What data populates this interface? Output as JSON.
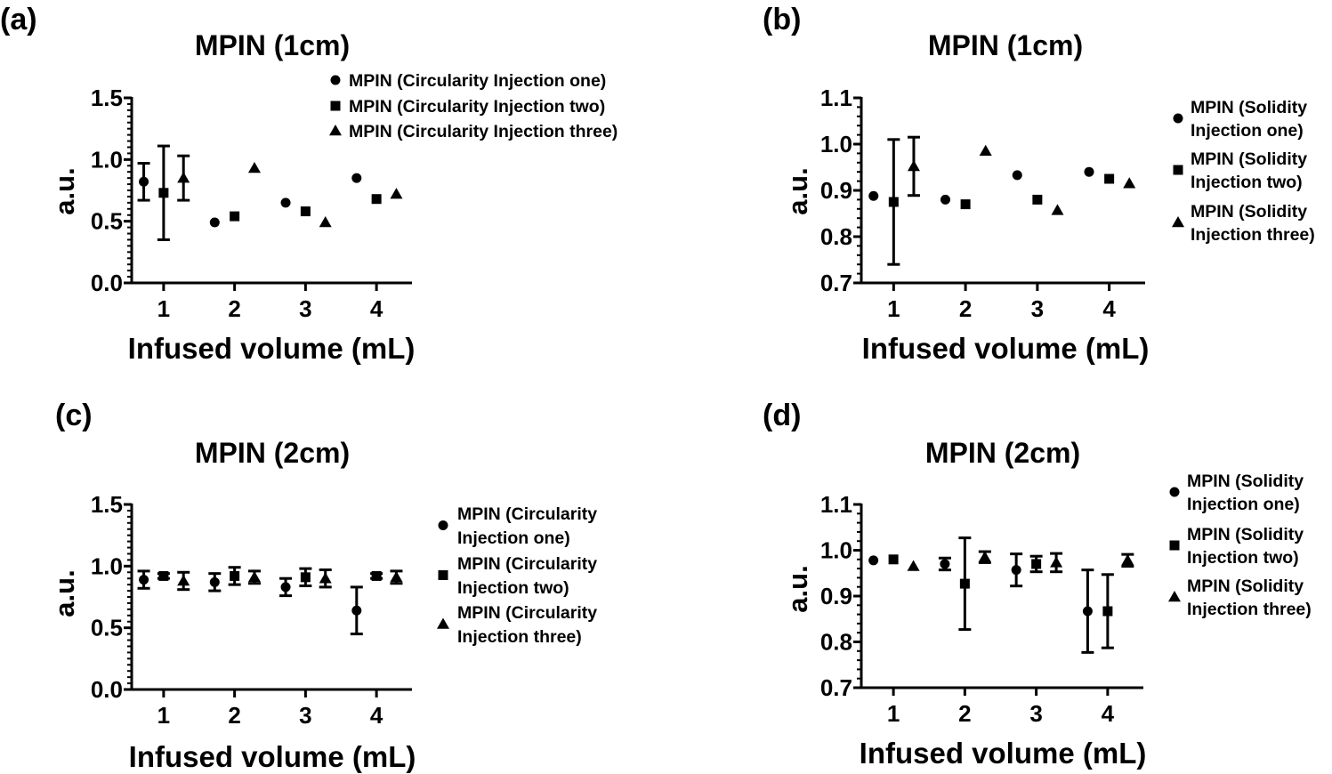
{
  "chart_data": [
    {
      "panel": "(a)",
      "type": "scatter",
      "title": "MPIN (1cm)",
      "xlabel": "Infused volume (mL)",
      "ylabel": "a.u.",
      "ylim": [
        0.0,
        1.5
      ],
      "yticks": [
        "0.0",
        "0.5",
        "1.0",
        "1.5"
      ],
      "xlim": [
        0.55,
        4.5
      ],
      "xticks": [
        1,
        2,
        3,
        4
      ],
      "grid": false,
      "legend_position": "top-right",
      "legend_lines": [
        [
          "MPIN (Circularity Injection one)"
        ],
        [
          "MPIN (Circularity Injection two)"
        ],
        [
          "MPIN (Circularity Injection three)"
        ]
      ],
      "series": [
        {
          "name": "MPIN (Circularity Injection one)",
          "marker": "circle",
          "points": [
            {
              "x": 0.72,
              "y": 0.82,
              "err": 0.15
            },
            {
              "x": 1.72,
              "y": 0.49
            },
            {
              "x": 2.72,
              "y": 0.65
            },
            {
              "x": 3.72,
              "y": 0.85
            }
          ]
        },
        {
          "name": "MPIN (Circularity Injection two)",
          "marker": "square",
          "points": [
            {
              "x": 1.0,
              "y": 0.73,
              "err": 0.38
            },
            {
              "x": 2.0,
              "y": 0.54
            },
            {
              "x": 3.0,
              "y": 0.58
            },
            {
              "x": 4.0,
              "y": 0.68
            }
          ]
        },
        {
          "name": "MPIN (Circularity Injection three)",
          "marker": "triangle",
          "points": [
            {
              "x": 1.28,
              "y": 0.85,
              "err": 0.18
            },
            {
              "x": 2.28,
              "y": 0.93
            },
            {
              "x": 3.28,
              "y": 0.49
            },
            {
              "x": 4.28,
              "y": 0.72
            }
          ]
        }
      ]
    },
    {
      "panel": "(b)",
      "type": "scatter",
      "title": "MPIN (1cm)",
      "xlabel": "Infused volume (mL)",
      "ylabel": "a.u.",
      "ylim": [
        0.7,
        1.1
      ],
      "yticks": [
        "0.7",
        "0.8",
        "0.9",
        "1.0",
        "1.1"
      ],
      "xlim": [
        0.55,
        4.5
      ],
      "xticks": [
        1,
        2,
        3,
        4
      ],
      "grid": false,
      "legend_position": "right",
      "legend_lines": [
        [
          "MPIN (Solidity",
          "Injection one)"
        ],
        [
          "MPIN (Solidity",
          "Injection two)"
        ],
        [
          "MPIN (Solidity",
          "Injection three)"
        ]
      ],
      "series": [
        {
          "name": "MPIN (Solidity Injection one)",
          "marker": "circle",
          "points": [
            {
              "x": 0.72,
              "y": 0.888
            },
            {
              "x": 1.72,
              "y": 0.88
            },
            {
              "x": 2.72,
              "y": 0.933
            },
            {
              "x": 3.72,
              "y": 0.94
            }
          ]
        },
        {
          "name": "MPIN (Solidity Injection two)",
          "marker": "square",
          "points": [
            {
              "x": 1.0,
              "y": 0.875,
              "err": 0.135
            },
            {
              "x": 2.0,
              "y": 0.87
            },
            {
              "x": 3.0,
              "y": 0.88
            },
            {
              "x": 4.0,
              "y": 0.925
            }
          ]
        },
        {
          "name": "MPIN (Solidity Injection three)",
          "marker": "triangle",
          "points": [
            {
              "x": 1.28,
              "y": 0.952,
              "err": 0.063
            },
            {
              "x": 2.28,
              "y": 0.985
            },
            {
              "x": 3.28,
              "y": 0.857
            },
            {
              "x": 4.28,
              "y": 0.915
            }
          ]
        }
      ]
    },
    {
      "panel": "(c)",
      "type": "scatter",
      "title": "MPIN (2cm)",
      "xlabel": "Infused volume (mL)",
      "ylabel": "a.u.",
      "ylim": [
        0.0,
        1.5
      ],
      "yticks": [
        "0.0",
        "0.5",
        "1.0",
        "1.5"
      ],
      "xlim": [
        0.55,
        4.5
      ],
      "xticks": [
        1,
        2,
        3,
        4
      ],
      "grid": false,
      "legend_position": "right",
      "legend_lines": [
        [
          "MPIN (Circularity",
          "Injection one)"
        ],
        [
          "MPIN (Circularity",
          "Injection two)"
        ],
        [
          "MPIN (Circularity",
          "Injection three)"
        ]
      ],
      "series": [
        {
          "name": "MPIN (Circularity Injection one)",
          "marker": "circle",
          "points": [
            {
              "x": 0.72,
              "y": 0.89,
              "err": 0.07
            },
            {
              "x": 1.72,
              "y": 0.87,
              "err": 0.07
            },
            {
              "x": 2.72,
              "y": 0.83,
              "err": 0.07
            },
            {
              "x": 3.72,
              "y": 0.64,
              "err": 0.19
            }
          ]
        },
        {
          "name": "MPIN (Circularity Injection two)",
          "marker": "square",
          "points": [
            {
              "x": 1.0,
              "y": 0.92,
              "err": 0.02
            },
            {
              "x": 2.0,
              "y": 0.92,
              "err": 0.07
            },
            {
              "x": 3.0,
              "y": 0.91,
              "err": 0.07
            },
            {
              "x": 4.0,
              "y": 0.92,
              "err": 0.02
            }
          ]
        },
        {
          "name": "MPIN (Circularity Injection three)",
          "marker": "triangle",
          "points": [
            {
              "x": 1.28,
              "y": 0.88,
              "err": 0.07
            },
            {
              "x": 2.28,
              "y": 0.91,
              "err": 0.05
            },
            {
              "x": 3.28,
              "y": 0.9,
              "err": 0.07
            },
            {
              "x": 4.28,
              "y": 0.91,
              "err": 0.05
            }
          ]
        }
      ]
    },
    {
      "panel": "(d)",
      "type": "scatter",
      "title": "MPIN (2cm)",
      "xlabel": "Infused volume (mL)",
      "ylabel": "a.u.",
      "ylim": [
        0.7,
        1.1
      ],
      "yticks": [
        "0.7",
        "0.8",
        "0.9",
        "1.0",
        "1.1"
      ],
      "xlim": [
        0.55,
        4.5
      ],
      "xticks": [
        1,
        2,
        3,
        4
      ],
      "grid": false,
      "legend_position": "right",
      "legend_lines": [
        [
          "MPIN (Solidity",
          "Injection one)"
        ],
        [
          "MPIN (Solidity",
          "Injection two)"
        ],
        [
          "MPIN (Solidity",
          "Injection three)"
        ]
      ],
      "series": [
        {
          "name": "MPIN (Solidity Injection one)",
          "marker": "circle",
          "points": [
            {
              "x": 0.72,
              "y": 0.978
            },
            {
              "x": 1.72,
              "y": 0.97,
              "err": 0.013
            },
            {
              "x": 2.72,
              "y": 0.957,
              "err": 0.035
            },
            {
              "x": 3.72,
              "y": 0.867,
              "err": 0.09
            }
          ]
        },
        {
          "name": "MPIN (Solidity Injection two)",
          "marker": "square",
          "points": [
            {
              "x": 1.0,
              "y": 0.98
            },
            {
              "x": 2.0,
              "y": 0.927,
              "err": 0.1
            },
            {
              "x": 3.0,
              "y": 0.97,
              "err": 0.017
            },
            {
              "x": 4.0,
              "y": 0.867,
              "err": 0.08
            }
          ]
        },
        {
          "name": "MPIN (Solidity Injection three)",
          "marker": "triangle",
          "points": [
            {
              "x": 1.28,
              "y": 0.965
            },
            {
              "x": 2.28,
              "y": 0.985,
              "err": 0.012
            },
            {
              "x": 3.28,
              "y": 0.973,
              "err": 0.02
            },
            {
              "x": 4.28,
              "y": 0.978,
              "err": 0.013
            }
          ]
        }
      ]
    }
  ]
}
